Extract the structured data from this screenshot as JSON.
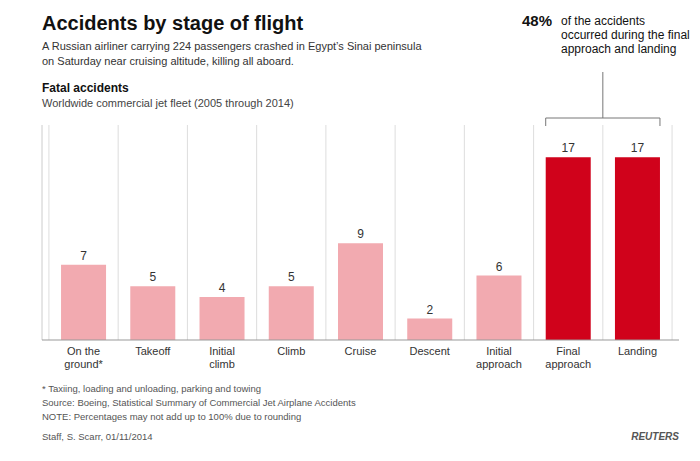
{
  "chart_data": {
    "type": "bar",
    "title": "Accidents by stage of flight",
    "subtitle": [
      "A Russian airliner carrying 224 passengers crashed in Egypt’s Sinai peninsula",
      "on Saturday near cruising altitude, killing all aboard."
    ],
    "annotations": [
      "Fatal accidents",
      "Worldwide commercial jet fleet (2005 through 2014)",
      "48%",
      " of the accidents\noccurred during the final\napproach and landing",
      "* Taxiing, loading and unloading, parking and towing",
      "Source: Boeing, Statistical Summary of Commercial Jet Airplane Accidents",
      "NOTE: Percentages may not add up to 100% due to rounding",
      "Staff, S. Scarr, 01/11/2014",
      "REUTERS"
    ],
    "categories": [
      "On the\nground*",
      "Takeoff",
      "Initial\nclimb",
      "Climb",
      "Cruise",
      "Descent",
      "Initial\napproach",
      "Final\napproach",
      "Landing"
    ],
    "values": [
      7,
      5,
      4,
      5,
      9,
      2,
      6,
      17,
      17
    ],
    "colors": [
      "#f2aab0",
      "#f2aab0",
      "#f2aab0",
      "#f2aab0",
      "#f2aab0",
      "#f2aab0",
      "#f2aab0",
      "#d0021b",
      "#d0021b"
    ],
    "ylim": [
      0,
      20
    ],
    "data_labels": true,
    "tick_labels": "x",
    "grid": true
  }
}
